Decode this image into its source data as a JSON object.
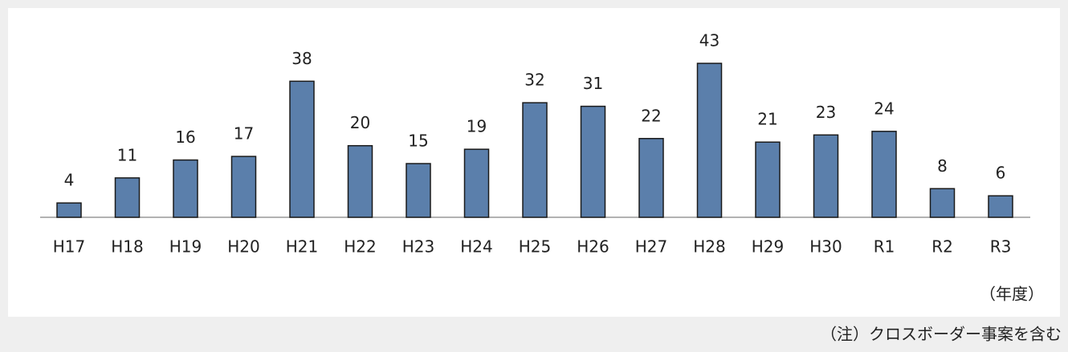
{
  "chart_data": {
    "type": "bar",
    "categories": [
      "H17",
      "H18",
      "H19",
      "H20",
      "H21",
      "H22",
      "H23",
      "H24",
      "H25",
      "H26",
      "H27",
      "H28",
      "H29",
      "H30",
      "R1",
      "R2",
      "R3"
    ],
    "values": [
      4,
      11,
      16,
      17,
      38,
      20,
      15,
      19,
      32,
      31,
      22,
      43,
      21,
      23,
      24,
      8,
      6
    ],
    "color": "#5b7fab",
    "x_unit_label": "（年度）",
    "note": "（注）クロスボーダー事案を含む"
  }
}
